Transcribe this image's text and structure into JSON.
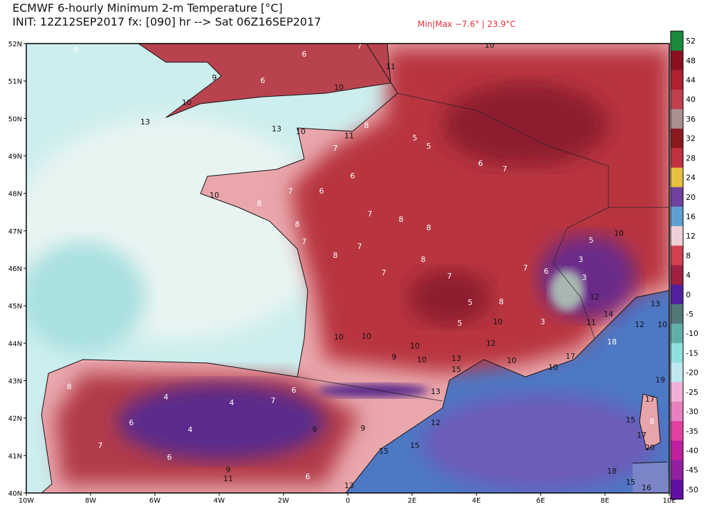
{
  "header": {
    "title": "ECMWF 6-hourly Minimum 2-m Temperature [°C]",
    "subtitle": "INIT: 12Z12SEP2017 fx: [090] hr --> Sat 06Z16SEP2017",
    "minmax": "Min|Max −7.6° | 23.9°C"
  },
  "map": {
    "lat_labels": [
      "52N",
      "51N",
      "50N",
      "49N",
      "48N",
      "47N",
      "46N",
      "45N",
      "44N",
      "43N",
      "42N",
      "41N",
      "40N"
    ],
    "lon_labels": [
      "10W",
      "8W",
      "6W",
      "4W",
      "2W",
      "0",
      "2E",
      "4E",
      "6E",
      "8E",
      "10E"
    ],
    "stations": [
      9,
      6,
      7,
      11,
      6,
      10,
      9,
      10,
      13,
      13,
      10,
      11,
      8,
      5,
      5,
      6,
      7,
      7,
      6,
      7,
      6,
      8,
      10,
      8,
      7,
      8,
      8,
      7,
      8,
      7,
      7,
      8,
      7,
      5,
      5,
      10,
      8,
      7,
      6,
      3,
      3,
      3,
      11,
      12,
      14,
      5,
      10,
      10,
      10,
      10,
      10,
      9,
      13,
      12,
      10,
      10,
      15,
      13,
      12,
      15,
      15,
      9,
      9,
      4,
      4,
      7,
      6,
      4,
      6,
      7,
      6,
      8,
      9,
      11,
      6,
      13,
      17,
      15,
      8,
      17,
      20,
      15,
      16,
      18,
      13,
      10,
      12,
      18,
      19,
      17,
      10
    ]
  },
  "colorbar": {
    "labels": [
      52,
      48,
      44,
      40,
      36,
      32,
      28,
      24,
      20,
      16,
      12,
      8,
      4,
      0,
      -5,
      -10,
      -15,
      -20,
      -25,
      -30,
      -35,
      -40,
      -45,
      -50
    ]
  }
}
